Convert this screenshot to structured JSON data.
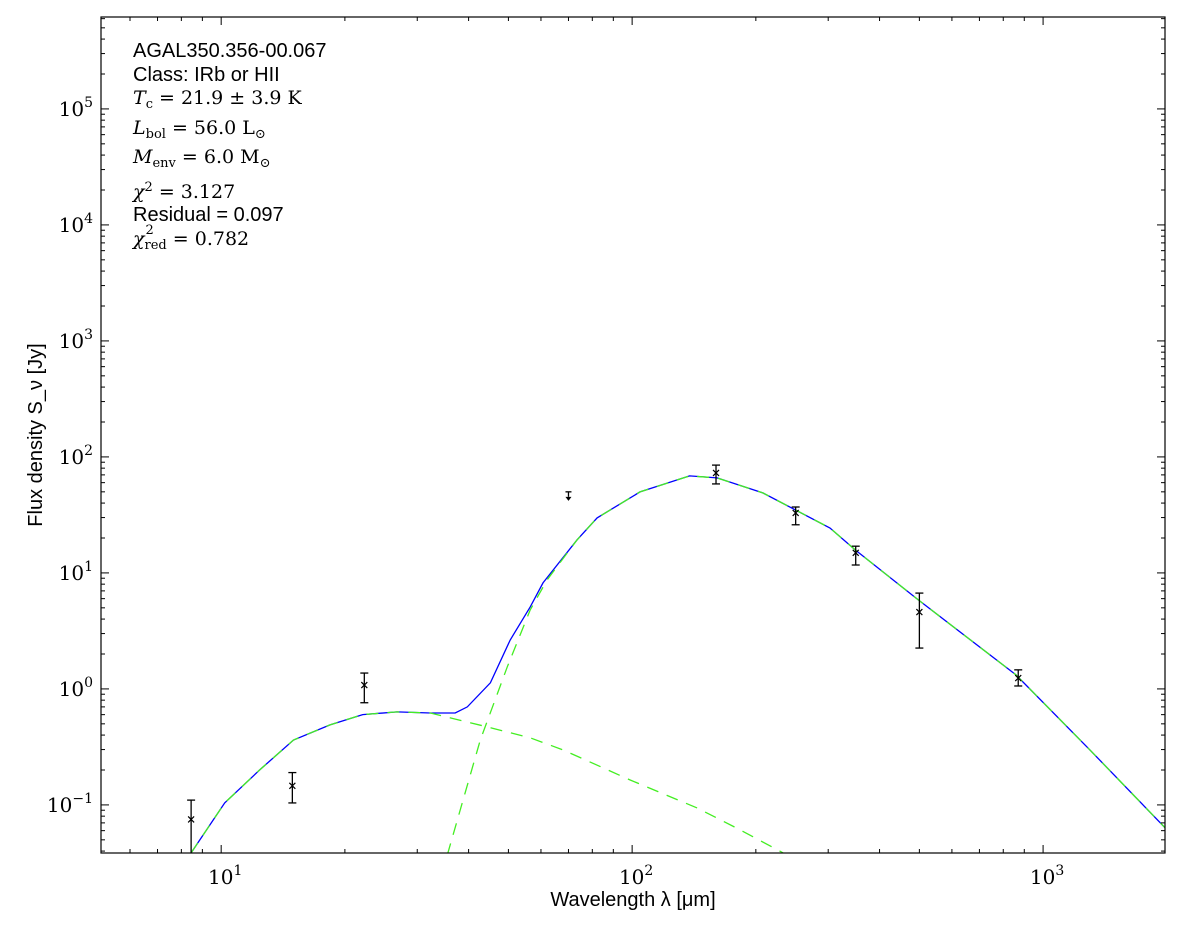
{
  "chart_data": {
    "type": "scatter",
    "xscale": "log",
    "yscale": "log",
    "xlabel": "Wavelength λ [μm]",
    "ylabel": "Flux density S_ν [Jy]",
    "xlim": [
      5.1,
      1980
    ],
    "ylim": [
      0.0385,
      620000
    ],
    "x_ticks": [
      {
        "base": "10",
        "exp": "1",
        "value": 10
      },
      {
        "base": "10",
        "exp": "2",
        "value": 100
      },
      {
        "base": "10",
        "exp": "3",
        "value": 1000
      }
    ],
    "y_ticks": [
      {
        "base": "10",
        "exp": "−1",
        "value": 0.1
      },
      {
        "base": "10",
        "exp": "0",
        "value": 1
      },
      {
        "base": "10",
        "exp": "1",
        "value": 10
      },
      {
        "base": "10",
        "exp": "2",
        "value": 100
      },
      {
        "base": "10",
        "exp": "3",
        "value": 1000
      },
      {
        "base": "10",
        "exp": "4",
        "value": 10000
      },
      {
        "base": "10",
        "exp": "5",
        "value": 100000
      }
    ],
    "grid": false,
    "colors": {
      "model_total": "#0000ff",
      "model_components": "#44ee22",
      "data": "#000000"
    },
    "data_points": [
      {
        "x": 8.45,
        "y": 0.075,
        "lower": 0.03,
        "upper": 0.11
      },
      {
        "x": 14.9,
        "y": 0.146,
        "lower": 0.104,
        "upper": 0.19
      },
      {
        "x": 22.3,
        "y": 1.08,
        "lower": 0.76,
        "upper": 1.37
      },
      {
        "x": 70,
        "y": 50,
        "upper_limit": true
      },
      {
        "x": 160,
        "y": 72.8,
        "lower": 58.5,
        "upper": 85
      },
      {
        "x": 250,
        "y": 32.9,
        "lower": 26,
        "upper": 37
      },
      {
        "x": 350,
        "y": 14.9,
        "lower": 11.7,
        "upper": 17
      },
      {
        "x": 500,
        "y": 4.6,
        "lower": 2.25,
        "upper": 6.7
      },
      {
        "x": 870,
        "y": 1.24,
        "lower": 1.06,
        "upper": 1.46
      }
    ],
    "series": [
      {
        "style": "solid",
        "color": "#0000ff",
        "points": [
          [
            8.45,
            0.0386
          ],
          [
            10.2,
            0.104
          ],
          [
            12.4,
            0.2
          ],
          [
            15.0,
            0.363
          ],
          [
            18.4,
            0.49
          ],
          [
            22.1,
            0.6
          ],
          [
            26.8,
            0.634
          ],
          [
            32.3,
            0.62
          ],
          [
            37.1,
            0.62
          ],
          [
            39.7,
            0.7
          ],
          [
            45.2,
            1.13
          ],
          [
            50.5,
            2.64
          ],
          [
            56.5,
            5.09
          ],
          [
            60.7,
            8.2
          ],
          [
            73.4,
            19.2
          ],
          [
            82.2,
            29.8
          ],
          [
            104.5,
            49.9
          ],
          [
            138,
            68.6
          ],
          [
            161,
            65.9
          ],
          [
            208,
            49.0
          ],
          [
            303,
            24.4
          ],
          [
            349,
            15.8
          ],
          [
            497,
            5.85
          ],
          [
            859,
            1.32
          ],
          [
            1300,
            0.298
          ],
          [
            1982,
            0.0634
          ]
        ]
      },
      {
        "style": "dashed",
        "color": "#44ee22",
        "points": [
          [
            8.45,
            0.0386
          ],
          [
            10.2,
            0.104
          ],
          [
            12.4,
            0.2
          ],
          [
            15.0,
            0.363
          ],
          [
            18.4,
            0.49
          ],
          [
            22.1,
            0.6
          ],
          [
            26.8,
            0.634
          ],
          [
            32.3,
            0.62
          ],
          [
            43.4,
            0.48
          ],
          [
            56.5,
            0.379
          ],
          [
            67.9,
            0.298
          ],
          [
            98.9,
            0.164
          ],
          [
            144,
            0.094
          ],
          [
            183,
            0.061
          ],
          [
            233,
            0.0386
          ]
        ]
      },
      {
        "style": "dashed",
        "color": "#44ee22",
        "points": [
          [
            35.5,
            0.037
          ],
          [
            42.7,
            0.363
          ],
          [
            49.7,
            1.55
          ],
          [
            56.5,
            4.8
          ],
          [
            62.1,
            8.7
          ],
          [
            73.4,
            19.2
          ],
          [
            82.2,
            29.8
          ],
          [
            104.5,
            49.9
          ],
          [
            138,
            68.6
          ],
          [
            161,
            65.9
          ],
          [
            208,
            49.0
          ],
          [
            303,
            24.4
          ],
          [
            349,
            15.8
          ],
          [
            497,
            5.85
          ],
          [
            859,
            1.32
          ],
          [
            1300,
            0.298
          ],
          [
            1982,
            0.0634
          ]
        ]
      }
    ]
  },
  "info": {
    "source": "AGAL350.356-00.067",
    "class": "Class: IRb or HII",
    "tc": {
      "sym": "T",
      "sub": "c",
      "rest": " = 21.9 ± 3.9 K"
    },
    "lbol": {
      "sym": "L",
      "sub": "bol",
      "rest": " = 56.0 L",
      "unit_sub": "⊙"
    },
    "menv": {
      "sym": "M",
      "sub": "env",
      "rest": " = 6.0 M",
      "unit_sub": "⊙"
    },
    "chi2": {
      "sym": "χ",
      "sup": "2",
      "rest": " = 3.127"
    },
    "residual": "Residual = 0.097",
    "chi2red": {
      "sym": "χ",
      "sup": "2",
      "sub": "red",
      "rest": " = 0.782"
    }
  }
}
